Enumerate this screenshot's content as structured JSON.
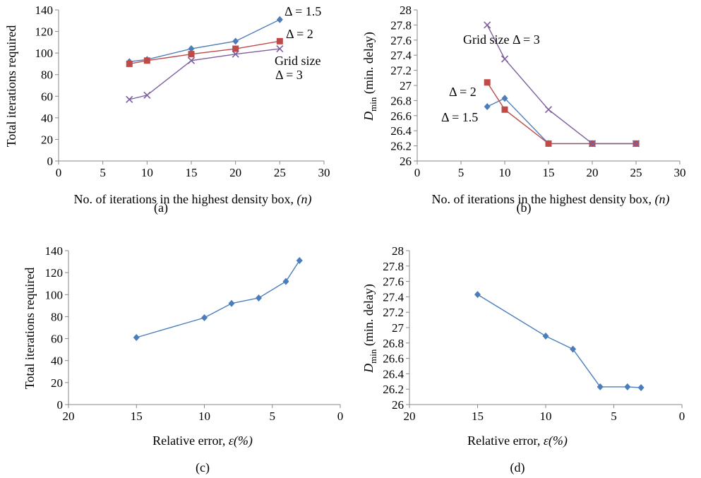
{
  "colors": {
    "blue": "#4a7ebb",
    "red": "#be4b48",
    "purple": "#7e5ea0",
    "axis": "#888888"
  },
  "chart_data": [
    {
      "id": "a",
      "type": "line",
      "panel_label": "(a)",
      "xlabel": "No. of iterations in the highest density box,",
      "xlabel_var": "(n)",
      "ylabel": "Total iterations required",
      "xlim": [
        0,
        30
      ],
      "xticks": [
        0,
        5,
        10,
        15,
        20,
        25,
        30
      ],
      "ylim": [
        0,
        140
      ],
      "yticks": [
        0,
        20,
        40,
        60,
        80,
        100,
        120,
        140
      ],
      "x_reversed": false,
      "series": [
        {
          "key": "d15",
          "color": "#4a7ebb",
          "marker": "diamond",
          "x": [
            8,
            10,
            15,
            20,
            25
          ],
          "y": [
            92,
            94,
            104,
            111,
            131
          ]
        },
        {
          "key": "d2",
          "color": "#be4b48",
          "marker": "square",
          "x": [
            8,
            10,
            15,
            20,
            25
          ],
          "y": [
            90,
            93,
            99,
            104,
            111
          ]
        },
        {
          "key": "d3",
          "color": "#7e5ea0",
          "marker": "x",
          "x": [
            8,
            10,
            15,
            20,
            25
          ],
          "y": [
            57,
            61,
            93,
            99,
            104
          ]
        }
      ],
      "annotations": [
        {
          "key": "a1",
          "text": "Δ = 1.5"
        },
        {
          "key": "a2",
          "text": "Δ = 2"
        },
        {
          "key": "a3",
          "text": "Grid size"
        },
        {
          "key": "a4",
          "text": "Δ = 3"
        }
      ]
    },
    {
      "id": "b",
      "type": "line",
      "panel_label": "(b)",
      "xlabel": "No. of iterations in the highest density box,",
      "xlabel_var": "(n)",
      "ylabel_symbol": "D",
      "ylabel_sub": "min",
      "ylabel_rest": "(min. delay)",
      "xlim": [
        0,
        30
      ],
      "xticks": [
        0,
        5,
        10,
        15,
        20,
        25,
        30
      ],
      "ylim": [
        26,
        28
      ],
      "yticks": [
        26,
        26.2,
        26.4,
        26.6,
        26.8,
        27,
        27.2,
        27.4,
        27.6,
        27.8,
        28
      ],
      "yticklabels": [
        "26",
        "26.2",
        "26.4",
        "26.6",
        "26.8",
        "27",
        "27.2",
        "27.4",
        "27.6",
        "27.8",
        "28"
      ],
      "x_reversed": false,
      "series": [
        {
          "key": "d15",
          "color": "#4a7ebb",
          "marker": "diamond",
          "x": [
            8,
            10,
            15,
            20,
            25
          ],
          "y": [
            26.72,
            26.83,
            26.23,
            26.23,
            26.23
          ]
        },
        {
          "key": "d2",
          "color": "#be4b48",
          "marker": "square",
          "x": [
            8,
            10,
            15,
            20,
            25
          ],
          "y": [
            27.04,
            26.68,
            26.23,
            26.23,
            26.23
          ]
        },
        {
          "key": "d3",
          "color": "#7e5ea0",
          "marker": "x",
          "x": [
            8,
            10,
            15,
            20,
            25
          ],
          "y": [
            27.8,
            27.35,
            26.68,
            26.23,
            26.23
          ]
        }
      ],
      "annotations": [
        {
          "key": "b1",
          "text": "Grid size Δ = 3"
        },
        {
          "key": "b2",
          "text": "Δ = 2"
        },
        {
          "key": "b3",
          "text": "Δ = 1.5"
        }
      ]
    },
    {
      "id": "c",
      "type": "line",
      "panel_label": "(c)",
      "xlabel": "Relative error,",
      "xlabel_var": "ε(%)",
      "ylabel": "Total iterations required",
      "xlim": [
        0,
        20
      ],
      "xticks": [
        20,
        15,
        10,
        5,
        0
      ],
      "ylim": [
        0,
        140
      ],
      "yticks": [
        0,
        20,
        40,
        60,
        80,
        100,
        120,
        140
      ],
      "x_reversed": true,
      "series": [
        {
          "key": "s",
          "color": "#4a7ebb",
          "marker": "diamond",
          "x": [
            15,
            10,
            8,
            6,
            4,
            3
          ],
          "y": [
            61,
            79,
            92,
            97,
            112,
            131
          ]
        }
      ],
      "annotations": []
    },
    {
      "id": "d",
      "type": "line",
      "panel_label": "(d)",
      "xlabel": "Relative error,",
      "xlabel_var": "ε(%)",
      "ylabel_symbol": "D",
      "ylabel_sub": "min",
      "ylabel_rest": "(min. delay)",
      "xlim": [
        0,
        20
      ],
      "xticks": [
        20,
        15,
        10,
        5,
        0
      ],
      "ylim": [
        26,
        28
      ],
      "yticks": [
        26,
        26.2,
        26.4,
        26.6,
        26.8,
        27,
        27.2,
        27.4,
        27.6,
        27.8,
        28
      ],
      "yticklabels": [
        "26",
        "26.2",
        "26.4",
        "26.6",
        "26.8",
        "27",
        "27.2",
        "27.4",
        "27.6",
        "27.8",
        "28"
      ],
      "x_reversed": true,
      "series": [
        {
          "key": "s",
          "color": "#4a7ebb",
          "marker": "diamond",
          "x": [
            15,
            10,
            8,
            6,
            4,
            3
          ],
          "y": [
            27.43,
            26.89,
            26.72,
            26.23,
            26.23,
            26.22
          ]
        }
      ],
      "annotations": []
    }
  ]
}
